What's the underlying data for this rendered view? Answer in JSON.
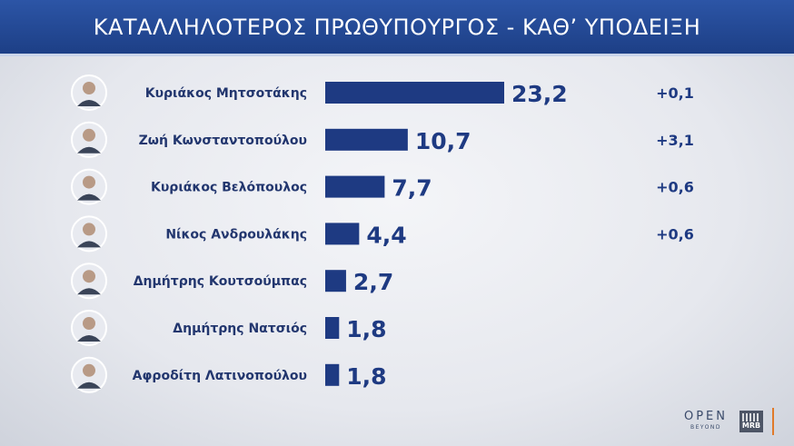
{
  "header": {
    "title": "ΚΑΤΑΛΛΗΛΟΤΕΡΟΣ  ΠΡΩΘΥΠΟΥΡΓΟΣ - ΚΑΘ’ ΥΠΟΔΕΙΞΗ"
  },
  "chart_data": {
    "type": "bar",
    "orientation": "horizontal",
    "title": "ΚΑΤΑΛΛΗΛΟΤΕΡΟΣ  ΠΡΩΘΥΠΟΥΡΓΟΣ - ΚΑΘ’ ΥΠΟΔΕΙΞΗ",
    "categories": [
      "Κυριάκος Μητσοτάκης",
      "Ζωή Κωνσταντοπούλου",
      "Κυριάκος Βελόπουλος",
      "Νίκος Ανδρουλάκης",
      "Δημήτρης Κουτσούμπας",
      "Δημήτρης Νατσιός",
      "Αφροδίτη Λατινοπούλου"
    ],
    "values": [
      23.2,
      10.7,
      7.7,
      4.4,
      2.7,
      1.8,
      1.8
    ],
    "value_labels": [
      "23,2",
      "10,7",
      "7,7",
      "4,4",
      "2,7",
      "1,8",
      "1,8"
    ],
    "changes": [
      "+0,1",
      "+3,1",
      "+0,6",
      "+0,6",
      "",
      "",
      ""
    ],
    "grid": false,
    "legend": "none"
  },
  "colors": {
    "header_bg": "#1d3f86",
    "bar": "#1e3a82",
    "text": "#22366e",
    "accent": "#e07a2a"
  },
  "footer": {
    "logo_open": "OPEN",
    "logo_open_sub": "BEYOND",
    "logo_mrb": "MRB"
  }
}
